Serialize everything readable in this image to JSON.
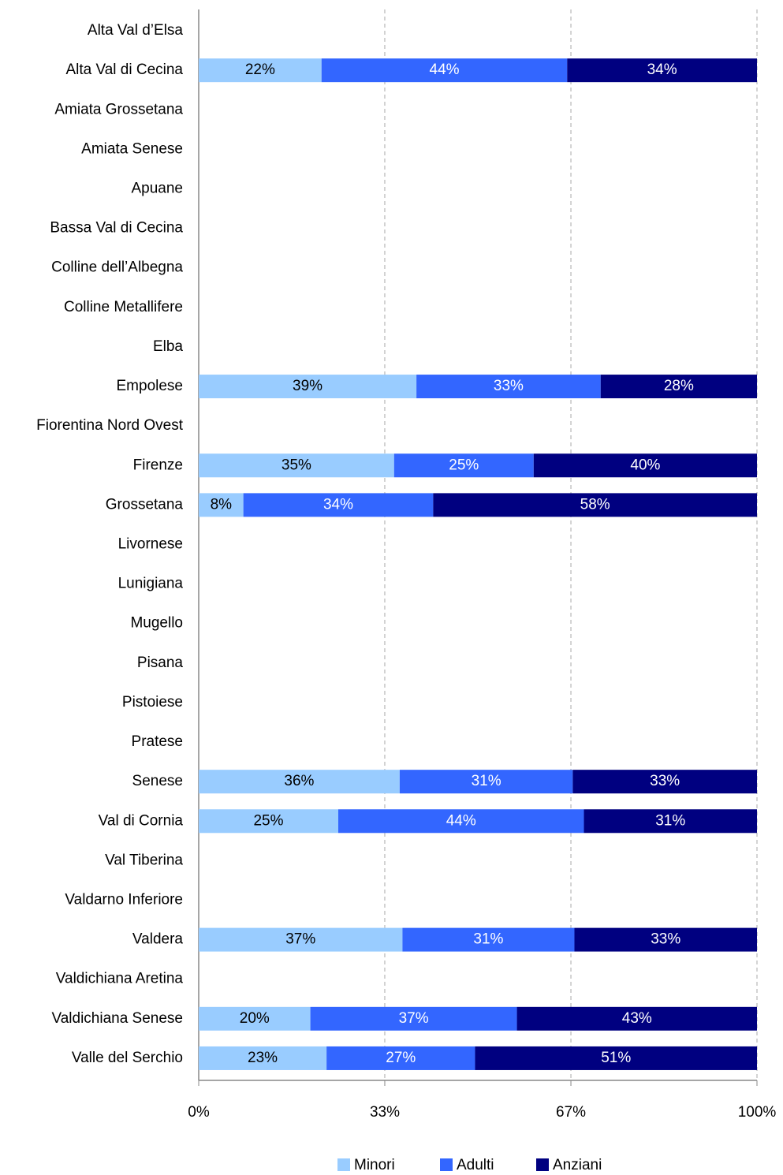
{
  "chart_data": {
    "type": "stacked-barh",
    "categories": [
      "Alta Val d’Elsa",
      "Alta Val di Cecina",
      "Amiata Grossetana",
      "Amiata Senese",
      "Apuane",
      "Bassa Val di Cecina",
      "Colline dell’Albegna",
      "Colline Metallifere",
      "Elba",
      "Empolese",
      "Fiorentina Nord Ovest",
      "Firenze",
      "Grossetana",
      "Livornese",
      "Lunigiana",
      "Mugello",
      "Pisana",
      "Pistoiese",
      "Pratese",
      "Senese",
      "Val di Cornia",
      "Val Tiberina",
      "Valdarno Inferiore",
      "Valdera",
      "Valdichiana Aretina",
      "Valdichiana Senese",
      "Valle del Serchio"
    ],
    "series": [
      {
        "name": "Minori",
        "color": "#99ccff",
        "label_color": "#000000",
        "values": [
          null,
          22,
          null,
          null,
          null,
          null,
          null,
          null,
          null,
          39,
          null,
          35,
          8,
          null,
          null,
          null,
          null,
          null,
          null,
          36,
          25,
          null,
          null,
          36.5,
          null,
          20,
          22.9
        ],
        "value_labels": [
          null,
          "22%",
          null,
          null,
          null,
          null,
          null,
          null,
          null,
          "39%",
          null,
          "35%",
          "8%",
          null,
          null,
          null,
          null,
          null,
          null,
          "36%",
          "25%",
          null,
          null,
          "37%",
          null,
          "20%",
          "23%"
        ]
      },
      {
        "name": "Adulti",
        "color": "#3366ff",
        "label_color": "#ffffff",
        "values": [
          null,
          44,
          null,
          null,
          null,
          null,
          null,
          null,
          null,
          33,
          null,
          25,
          34,
          null,
          null,
          null,
          null,
          null,
          null,
          31,
          44,
          null,
          null,
          30.8,
          null,
          37,
          26.6
        ],
        "value_labels": [
          null,
          "44%",
          null,
          null,
          null,
          null,
          null,
          null,
          null,
          "33%",
          null,
          "25%",
          "34%",
          null,
          null,
          null,
          null,
          null,
          null,
          "31%",
          "44%",
          null,
          null,
          "31%",
          null,
          "37%",
          "27%"
        ]
      },
      {
        "name": "Anziani",
        "color": "#000080",
        "label_color": "#ffffff",
        "values": [
          null,
          34,
          null,
          null,
          null,
          null,
          null,
          null,
          null,
          28,
          null,
          40,
          58,
          null,
          null,
          null,
          null,
          null,
          null,
          33,
          31,
          null,
          null,
          32.7,
          null,
          43,
          50.5
        ],
        "value_labels": [
          null,
          "34%",
          null,
          null,
          null,
          null,
          null,
          null,
          null,
          "28%",
          null,
          "40%",
          "58%",
          null,
          null,
          null,
          null,
          null,
          null,
          "33%",
          "31%",
          null,
          null,
          "33%",
          null,
          "43%",
          "51%"
        ]
      }
    ],
    "xlim": [
      0,
      100
    ],
    "xticks": [
      {
        "value": 0,
        "label": "0%"
      },
      {
        "value": 33.33,
        "label": "33%"
      },
      {
        "value": 66.67,
        "label": "67%"
      },
      {
        "value": 100,
        "label": "100%"
      }
    ],
    "grid": true,
    "legend": "bottom"
  }
}
